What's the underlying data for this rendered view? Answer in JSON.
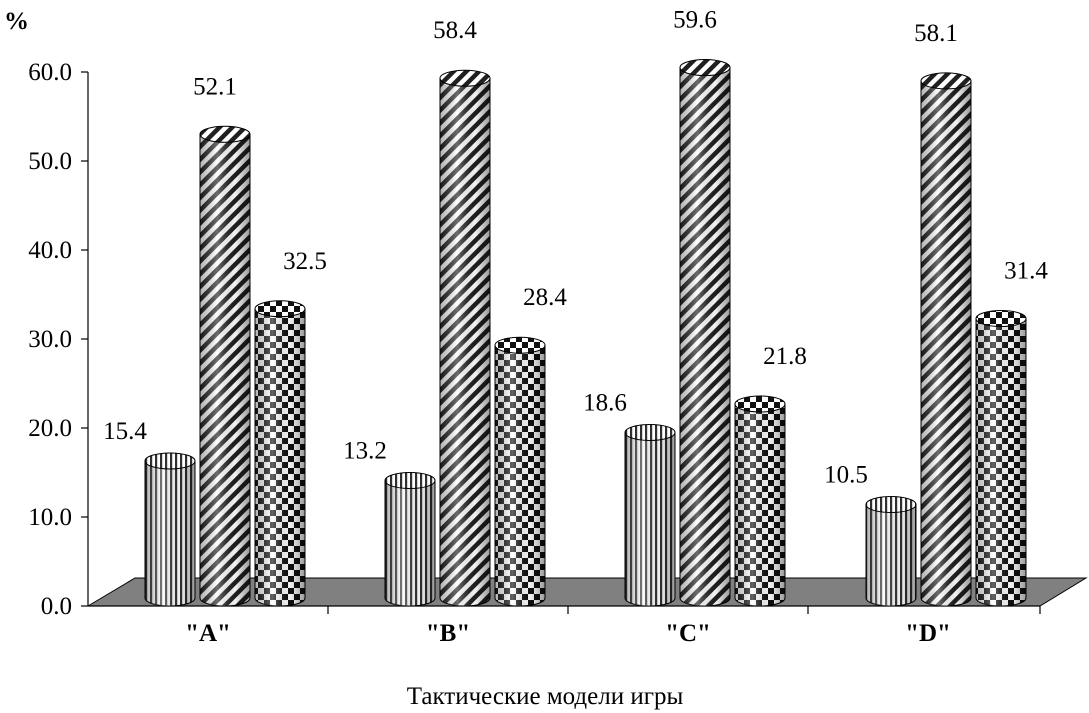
{
  "chart_data": {
    "type": "bar",
    "style": "3d-cylinder",
    "y_unit_label": "%",
    "xlabel": "Тактические модели игры",
    "ylabel": "",
    "ylim": [
      0,
      60
    ],
    "ytick_values": [
      0,
      10,
      20,
      30,
      40,
      50,
      60
    ],
    "ytick_labels": [
      "0.0",
      "10.0",
      "20.0",
      "30.0",
      "40.0",
      "50.0",
      "60.0"
    ],
    "grid": false,
    "legend": "none",
    "categories": [
      "\"A\"",
      "\"B\"",
      "\"C\"",
      "\"D\""
    ],
    "series": [
      {
        "pattern": "vertical-stripes",
        "values": [
          15.4,
          13.2,
          18.6,
          10.5
        ],
        "labels": [
          "15.4",
          "13.2",
          "18.6",
          "10.5"
        ]
      },
      {
        "pattern": "diagonal-stripes",
        "values": [
          52.1,
          58.4,
          59.6,
          58.1
        ],
        "labels": [
          "52.1",
          "58.4",
          "59.6",
          "58.1"
        ]
      },
      {
        "pattern": "checkerboard",
        "values": [
          32.5,
          28.4,
          21.8,
          31.4
        ],
        "labels": [
          "32.5",
          "28.4",
          "21.8",
          "31.4"
        ]
      }
    ],
    "colors": {
      "floor": "#808080",
      "outline": "#000000",
      "text": "#000000"
    }
  }
}
